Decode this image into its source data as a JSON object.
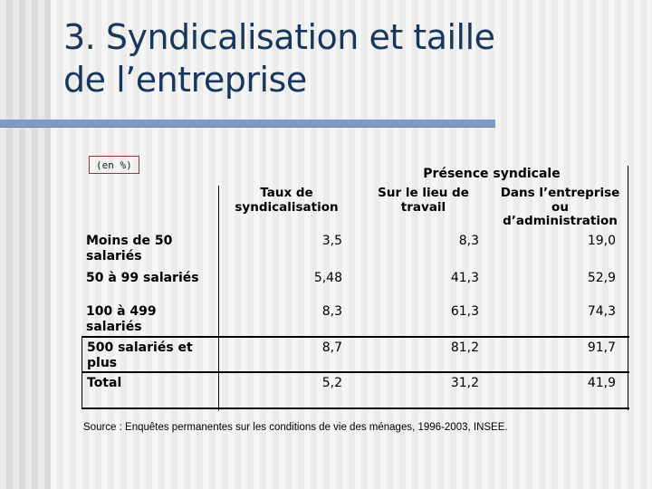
{
  "slide": {
    "title": {
      "line1": "3. Syndicalisation et taille",
      "line2": "de l’entreprise"
    },
    "unit_label": "(en %)",
    "source": "Source : Enquêtes permanentes sur les conditions de vie des ménages, 1996-2003, INSEE."
  },
  "table": {
    "group_header": "Présence syndicale",
    "columns": [
      "Taux de\nsyndicalisation",
      "Sur le lieu de\ntravail",
      "Dans l’entreprise\nou\nd’administration"
    ],
    "rows": [
      {
        "label": "Moins de 50\nsalariés",
        "values": [
          "3,5",
          "8,3",
          "19,0"
        ]
      },
      {
        "label": "50 à 99 salariés",
        "values": [
          "5,48",
          "41,3",
          "52,9"
        ]
      },
      {
        "label": "100 à 499 salariés",
        "values": [
          "8,3",
          "61,3",
          "74,3"
        ]
      },
      {
        "label": "500 salariés et\nplus",
        "values": [
          "8,7",
          "81,2",
          "91,7"
        ]
      },
      {
        "label": "Total",
        "values": [
          "5,2",
          "31,2",
          "41,9"
        ]
      }
    ]
  },
  "colors": {
    "title_text": "#17375e",
    "title_rule": "#7e9bc1",
    "unit_box_border": "#953735",
    "table_lines": "#000000"
  },
  "chart_data": {
    "type": "table",
    "title": "3. Syndicalisation et taille de l’entreprise",
    "unit": "en %",
    "categories": [
      "Moins de 50 salariés",
      "50 à 99 salariés",
      "100 à 499 salariés",
      "500 salariés et plus",
      "Total"
    ],
    "series": [
      {
        "name": "Taux de syndicalisation",
        "values": [
          3.5,
          5.48,
          8.3,
          8.7,
          5.2
        ]
      },
      {
        "name": "Présence syndicale – Sur le lieu de travail",
        "values": [
          8.3,
          41.3,
          61.3,
          81.2,
          31.2
        ]
      },
      {
        "name": "Présence syndicale – Dans l’entreprise ou d’administration",
        "values": [
          19.0,
          52.9,
          74.3,
          91.7,
          41.9
        ]
      }
    ],
    "source": "Enquêtes permanentes sur les conditions de vie des ménages, 1996-2003, INSEE."
  }
}
